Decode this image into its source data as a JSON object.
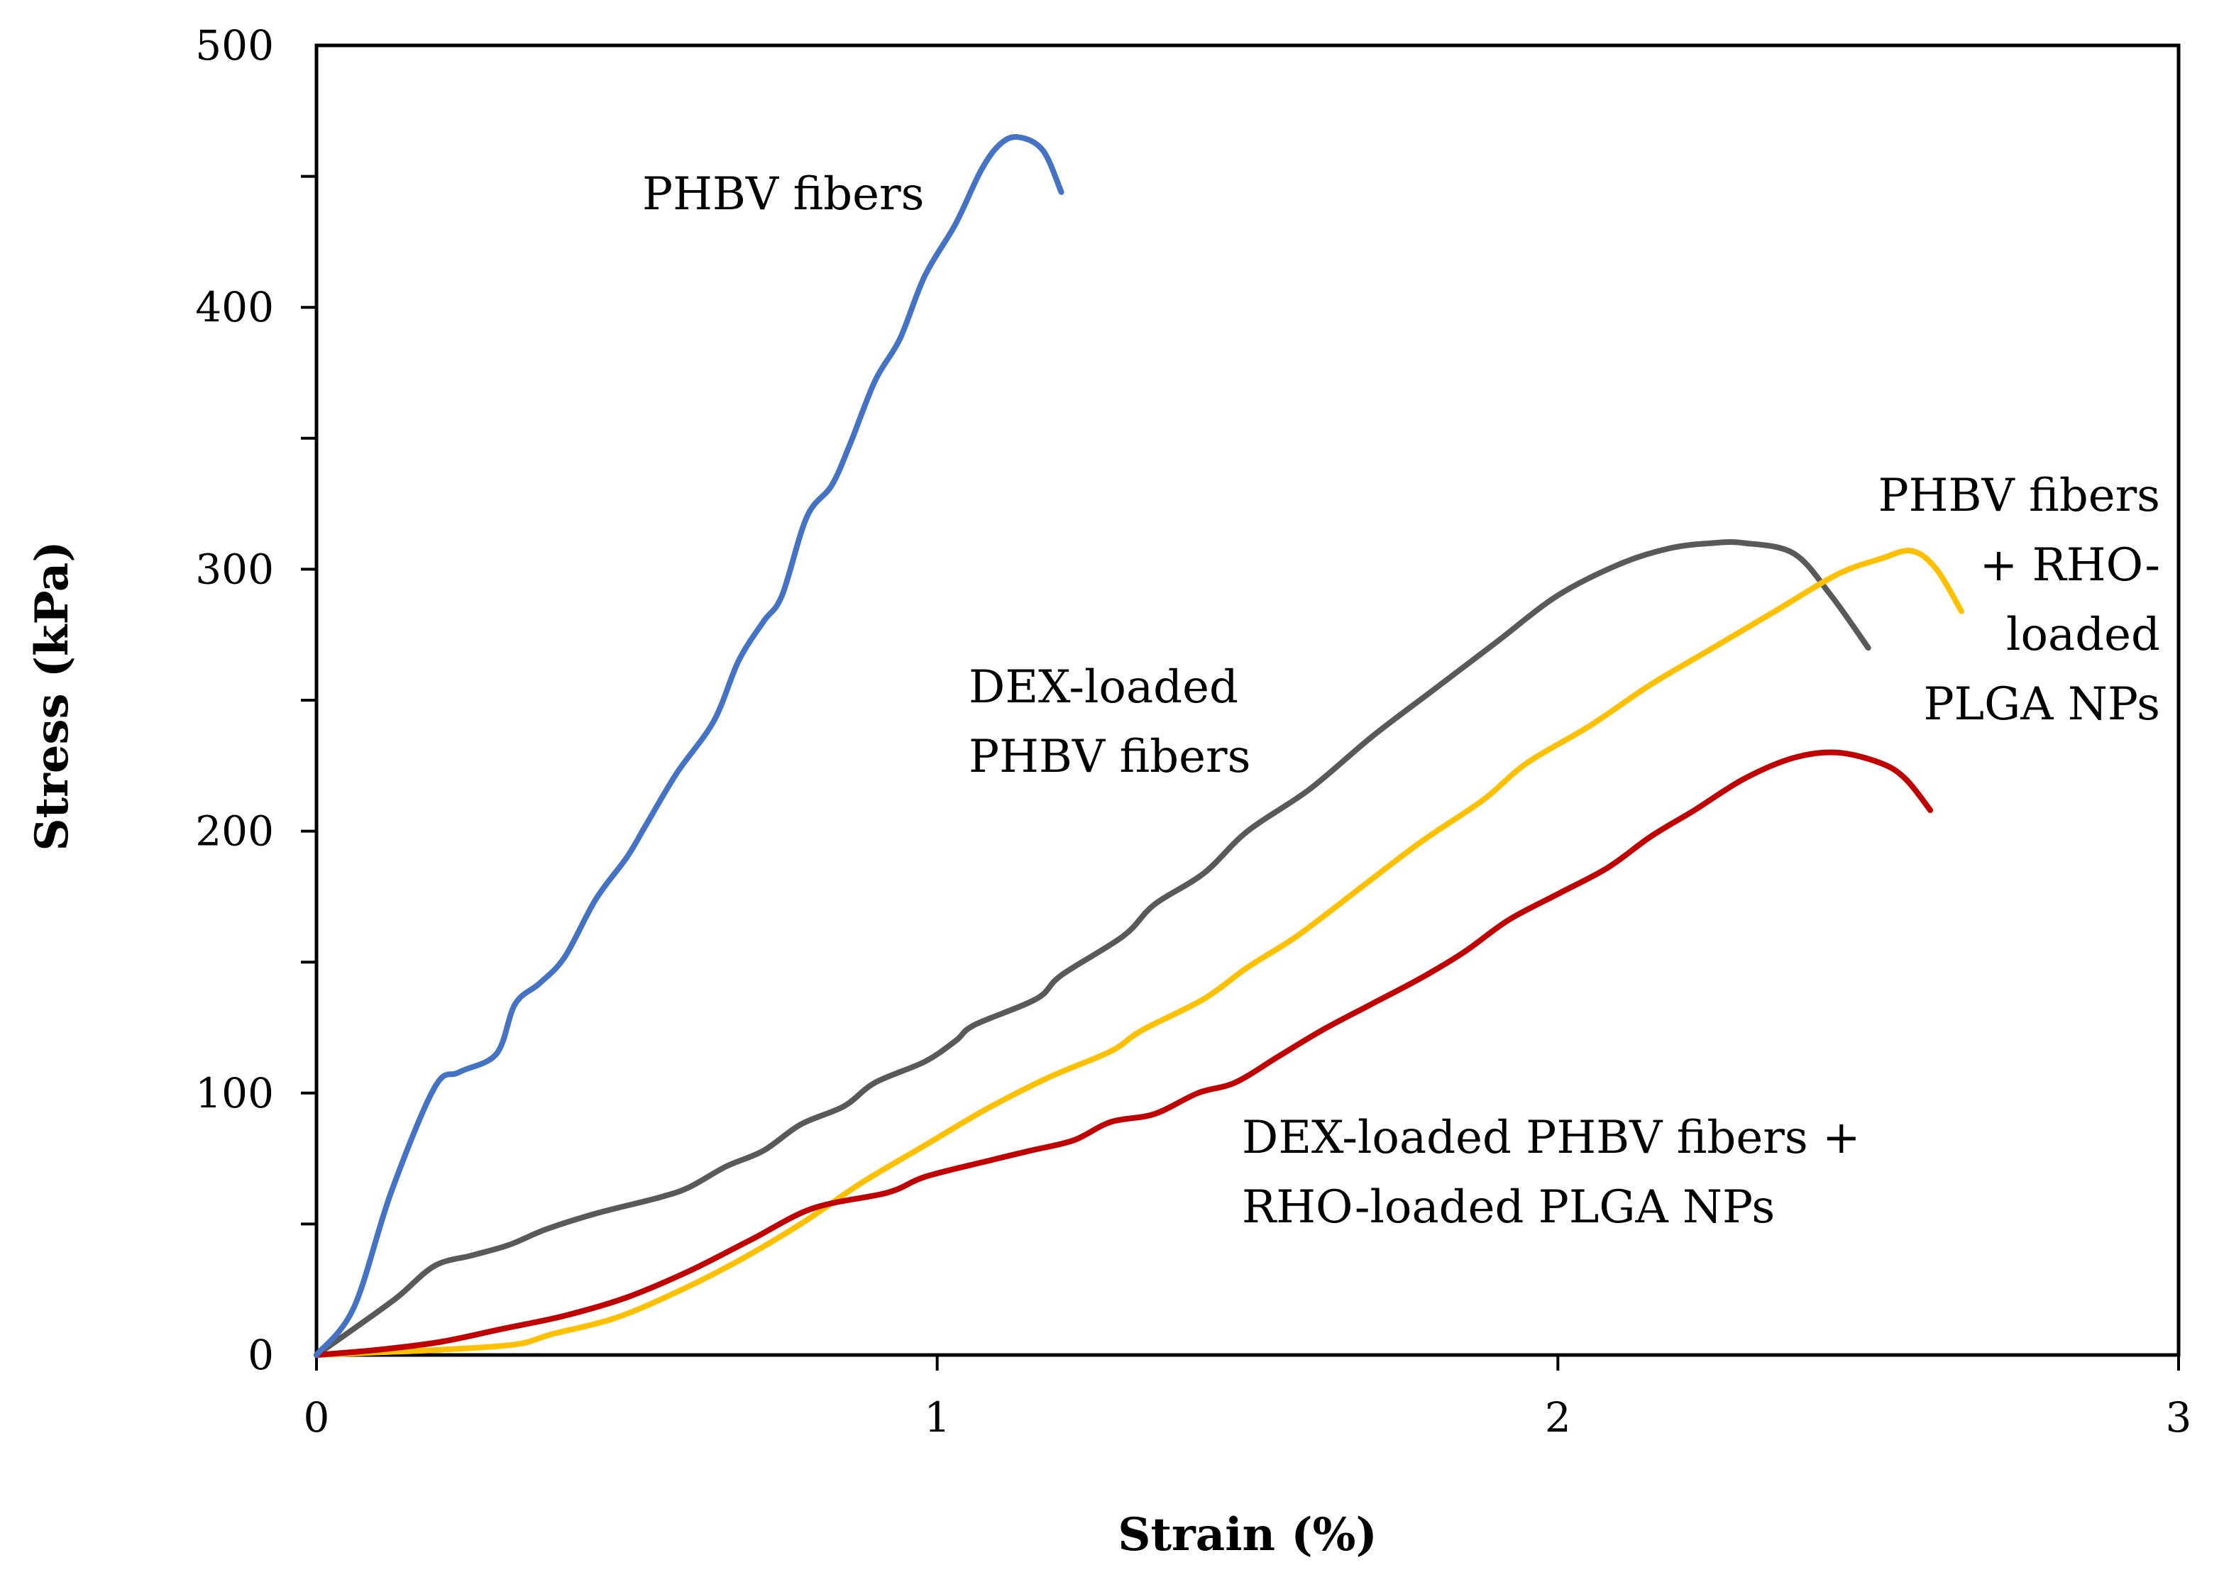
{
  "chart_data": {
    "type": "line",
    "title": "",
    "xlabel": "Strain (%)",
    "ylabel": "Stress (kPa)",
    "xlim": [
      0,
      3
    ],
    "ylim": [
      0,
      500
    ],
    "xticks": [
      0,
      1,
      2,
      3
    ],
    "xtick_labels": [
      "0",
      "1",
      "2",
      "3"
    ],
    "yticks": [
      0,
      100,
      200,
      300,
      400,
      500
    ],
    "ytick_labels": [
      "0",
      "100",
      "200",
      "300",
      "400",
      "500"
    ],
    "ytick_minor_step": 50,
    "grid": false,
    "legend": "none",
    "series": [
      {
        "name": "PHBV fibers",
        "color": "#4472C4",
        "points": [
          [
            0,
            0
          ],
          [
            0.06,
            18
          ],
          [
            0.12,
            62
          ],
          [
            0.19,
            102
          ],
          [
            0.23,
            108
          ],
          [
            0.29,
            115
          ],
          [
            0.32,
            134
          ],
          [
            0.36,
            142
          ],
          [
            0.4,
            152
          ],
          [
            0.45,
            174
          ],
          [
            0.5,
            190
          ],
          [
            0.53,
            202
          ],
          [
            0.58,
            222
          ],
          [
            0.64,
            242
          ],
          [
            0.68,
            265
          ],
          [
            0.72,
            280
          ],
          [
            0.75,
            290
          ],
          [
            0.79,
            320
          ],
          [
            0.83,
            332
          ],
          [
            0.86,
            348
          ],
          [
            0.9,
            372
          ],
          [
            0.94,
            388
          ],
          [
            0.98,
            412
          ],
          [
            1.03,
            432
          ],
          [
            1.07,
            452
          ],
          [
            1.1,
            462
          ],
          [
            1.13,
            465
          ],
          [
            1.17,
            460
          ],
          [
            1.2,
            444
          ]
        ]
      },
      {
        "name": "DEX-loaded PHBV fibers",
        "color": "#595959",
        "points": [
          [
            0,
            0
          ],
          [
            0.06,
            10
          ],
          [
            0.13,
            22
          ],
          [
            0.19,
            34
          ],
          [
            0.25,
            38
          ],
          [
            0.31,
            42
          ],
          [
            0.37,
            48
          ],
          [
            0.45,
            54
          ],
          [
            0.55,
            60
          ],
          [
            0.6,
            64
          ],
          [
            0.66,
            72
          ],
          [
            0.72,
            78
          ],
          [
            0.78,
            88
          ],
          [
            0.85,
            95
          ],
          [
            0.9,
            104
          ],
          [
            0.98,
            112
          ],
          [
            1.03,
            120
          ],
          [
            1.06,
            126
          ],
          [
            1.16,
            136
          ],
          [
            1.2,
            145
          ],
          [
            1.3,
            160
          ],
          [
            1.35,
            172
          ],
          [
            1.43,
            184
          ],
          [
            1.5,
            200
          ],
          [
            1.6,
            216
          ],
          [
            1.7,
            236
          ],
          [
            1.8,
            254
          ],
          [
            1.9,
            272
          ],
          [
            2.0,
            290
          ],
          [
            2.1,
            302
          ],
          [
            2.18,
            308
          ],
          [
            2.25,
            310
          ],
          [
            2.3,
            310
          ],
          [
            2.38,
            306
          ],
          [
            2.44,
            290
          ],
          [
            2.5,
            270
          ]
        ]
      },
      {
        "name": "PHBV fibers + RHO-loaded PLGA NPs",
        "color": "#FFC000",
        "points": [
          [
            0,
            0
          ],
          [
            0.1,
            1
          ],
          [
            0.2,
            2
          ],
          [
            0.32,
            4
          ],
          [
            0.38,
            8
          ],
          [
            0.48,
            14
          ],
          [
            0.58,
            24
          ],
          [
            0.68,
            36
          ],
          [
            0.78,
            50
          ],
          [
            0.88,
            66
          ],
          [
            0.98,
            80
          ],
          [
            1.08,
            94
          ],
          [
            1.18,
            106
          ],
          [
            1.28,
            116
          ],
          [
            1.33,
            124
          ],
          [
            1.43,
            136
          ],
          [
            1.5,
            148
          ],
          [
            1.58,
            160
          ],
          [
            1.68,
            178
          ],
          [
            1.78,
            196
          ],
          [
            1.88,
            212
          ],
          [
            1.95,
            226
          ],
          [
            2.05,
            240
          ],
          [
            2.15,
            256
          ],
          [
            2.25,
            270
          ],
          [
            2.35,
            284
          ],
          [
            2.45,
            298
          ],
          [
            2.52,
            304
          ],
          [
            2.57,
            307
          ],
          [
            2.61,
            300
          ],
          [
            2.65,
            284
          ]
        ]
      },
      {
        "name": "DEX-loaded PHBV fibers + RHO-loaded PLGA NPs",
        "color": "#C00000",
        "points": [
          [
            0,
            0
          ],
          [
            0.1,
            2
          ],
          [
            0.2,
            5
          ],
          [
            0.3,
            10
          ],
          [
            0.4,
            15
          ],
          [
            0.5,
            22
          ],
          [
            0.6,
            32
          ],
          [
            0.7,
            44
          ],
          [
            0.8,
            56
          ],
          [
            0.92,
            62
          ],
          [
            0.98,
            68
          ],
          [
            1.08,
            74
          ],
          [
            1.15,
            78
          ],
          [
            1.22,
            82
          ],
          [
            1.28,
            89
          ],
          [
            1.35,
            92
          ],
          [
            1.42,
            100
          ],
          [
            1.48,
            104
          ],
          [
            1.55,
            114
          ],
          [
            1.62,
            124
          ],
          [
            1.7,
            134
          ],
          [
            1.78,
            144
          ],
          [
            1.85,
            154
          ],
          [
            1.92,
            166
          ],
          [
            2.0,
            176
          ],
          [
            2.08,
            186
          ],
          [
            2.15,
            198
          ],
          [
            2.22,
            208
          ],
          [
            2.3,
            220
          ],
          [
            2.38,
            228
          ],
          [
            2.45,
            230
          ],
          [
            2.52,
            226
          ],
          [
            2.56,
            220
          ],
          [
            2.6,
            208
          ]
        ]
      }
    ],
    "annotations": [
      {
        "lines": [
          "PHBV fibers"
        ],
        "anchor": "start",
        "series": "PHBV fibers"
      },
      {
        "lines": [
          "DEX-loaded",
          "PHBV fibers"
        ],
        "anchor": "start",
        "series": "DEX-loaded PHBV fibers"
      },
      {
        "lines": [
          "PHBV fibers",
          "+ RHO-",
          "loaded",
          "PLGA NPs"
        ],
        "anchor": "end",
        "series": "PHBV fibers + RHO-loaded PLGA NPs"
      },
      {
        "lines": [
          "DEX-loaded PHBV fibers +",
          "RHO-loaded PLGA NPs"
        ],
        "anchor": "start",
        "series": "DEX-loaded PHBV fibers + RHO-loaded PLGA NPs"
      }
    ]
  }
}
